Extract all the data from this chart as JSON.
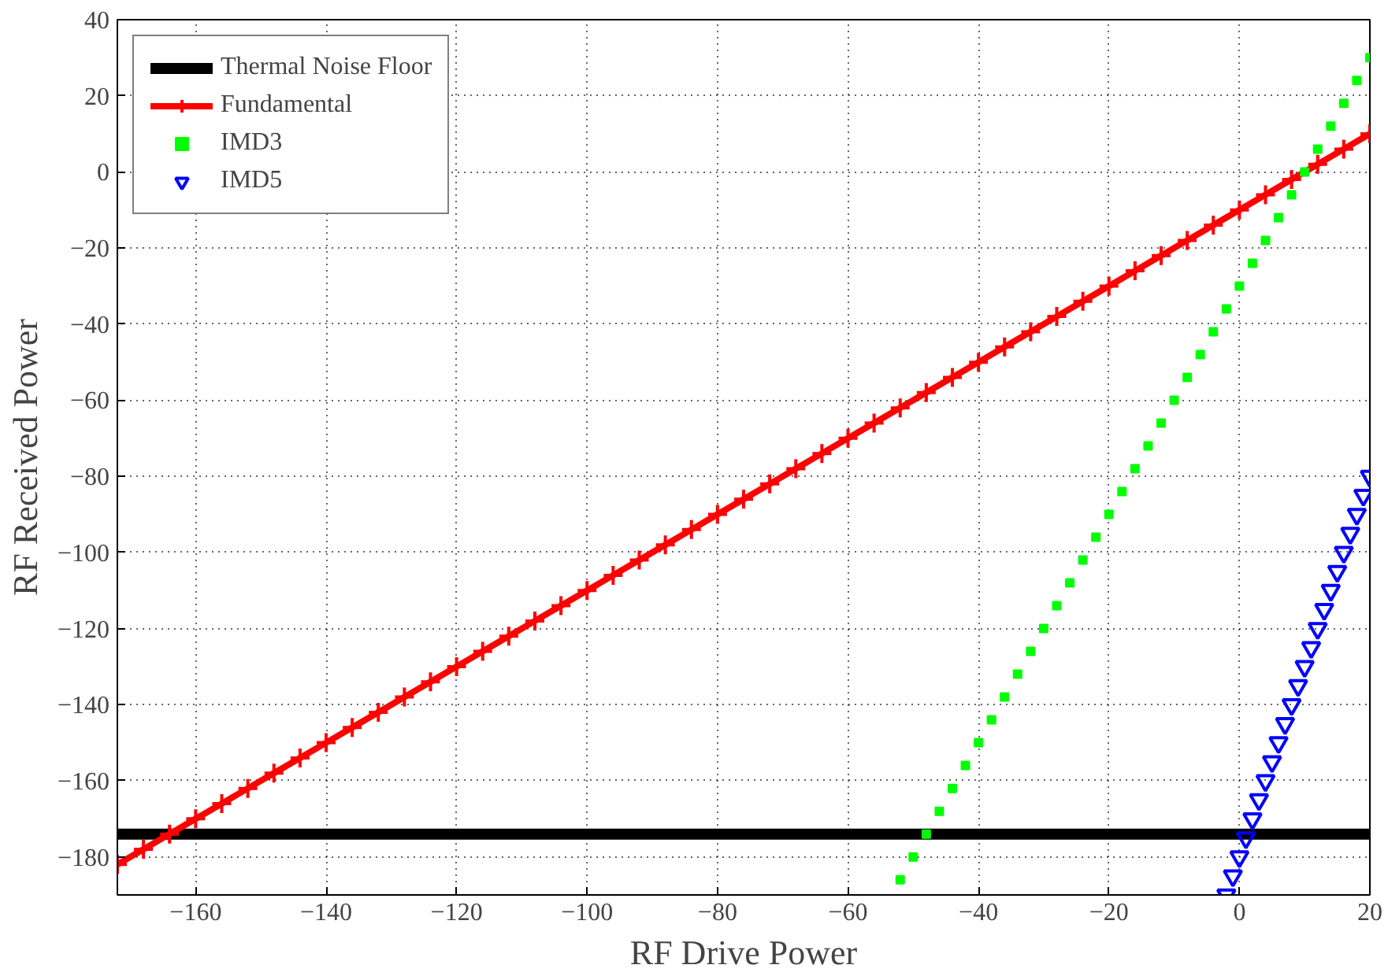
{
  "chart_data": {
    "type": "line",
    "xlabel": "RF Drive Power",
    "ylabel": "RF Received Power",
    "xlim": [
      -172,
      20
    ],
    "ylim": [
      -190,
      40
    ],
    "xticks": [
      -160,
      -140,
      -120,
      -100,
      -80,
      -60,
      -40,
      -20,
      0,
      20
    ],
    "yticks": [
      -180,
      -160,
      -140,
      -120,
      -100,
      -80,
      -60,
      -40,
      -20,
      0,
      20,
      40
    ],
    "grid": true,
    "legend": "top left",
    "series": [
      {
        "name": "Thermal Noise Floor",
        "color": "#000000",
        "marker": "none",
        "x": [
          -172,
          20
        ],
        "values": [
          -174,
          -174
        ]
      },
      {
        "name": "Fundamental",
        "color": "#ff0000",
        "marker": "cross",
        "x": [
          -172,
          -168,
          -164,
          -160,
          -156,
          -152,
          -148,
          -144,
          -140,
          -136,
          -132,
          -128,
          -124,
          -120,
          -116,
          -112,
          -108,
          -104,
          -100,
          -96,
          -92,
          -88,
          -84,
          -80,
          -76,
          -72,
          -68,
          -64,
          -60,
          -56,
          -52,
          -48,
          -44,
          -40,
          -36,
          -32,
          -28,
          -24,
          -20,
          -16,
          -12,
          -8,
          -4,
          0,
          4,
          8,
          12,
          16,
          20
        ],
        "values": [
          -182,
          -178,
          -174,
          -170,
          -166,
          -162,
          -158,
          -154,
          -150,
          -146,
          -142,
          -138,
          -134,
          -130,
          -126,
          -122,
          -118,
          -114,
          -110,
          -106,
          -102,
          -98,
          -94,
          -90,
          -86,
          -82,
          -78,
          -74,
          -70,
          -66,
          -62,
          -58,
          -54,
          -50,
          -46,
          -42,
          -38,
          -34,
          -30,
          -26,
          -22,
          -18,
          -14,
          -10,
          -6,
          -2,
          2,
          6,
          10
        ]
      },
      {
        "name": "IMD3",
        "type": "scatter",
        "color": "#00ff00",
        "marker": "square",
        "x": [
          -52,
          -50,
          -48,
          -46,
          -44,
          -42,
          -40,
          -38,
          -36,
          -34,
          -32,
          -30,
          -28,
          -26,
          -24,
          -22,
          -20,
          -18,
          -16,
          -14,
          -12,
          -10,
          -8,
          -6,
          -4,
          -2,
          0,
          2,
          4,
          6,
          8,
          10,
          12,
          14,
          16,
          18,
          20
        ],
        "values": [
          -186,
          -180,
          -174,
          -168,
          -162,
          -156,
          -150,
          -144,
          -138,
          -132,
          -126,
          -120,
          -114,
          -108,
          -102,
          -96,
          -90,
          -84,
          -78,
          -72,
          -66,
          -60,
          -54,
          -48,
          -42,
          -36,
          -30,
          -24,
          -18,
          -12,
          -6,
          0,
          6,
          12,
          18,
          24,
          30
        ]
      },
      {
        "name": "IMD5",
        "type": "scatter",
        "color": "#0000ff",
        "marker": "triangle",
        "x": [
          -2,
          -1,
          0,
          1,
          2,
          3,
          4,
          5,
          6,
          7,
          8,
          9,
          10,
          11,
          12,
          13,
          14,
          15,
          16,
          17,
          18,
          19,
          20
        ],
        "values": [
          -190,
          -185,
          -180,
          -175,
          -170,
          -165,
          -160,
          -155,
          -150,
          -145,
          -140,
          -135,
          -130,
          -125,
          -120,
          -115,
          -110,
          -105,
          -100,
          -95,
          -90,
          -85,
          -80
        ]
      }
    ]
  }
}
